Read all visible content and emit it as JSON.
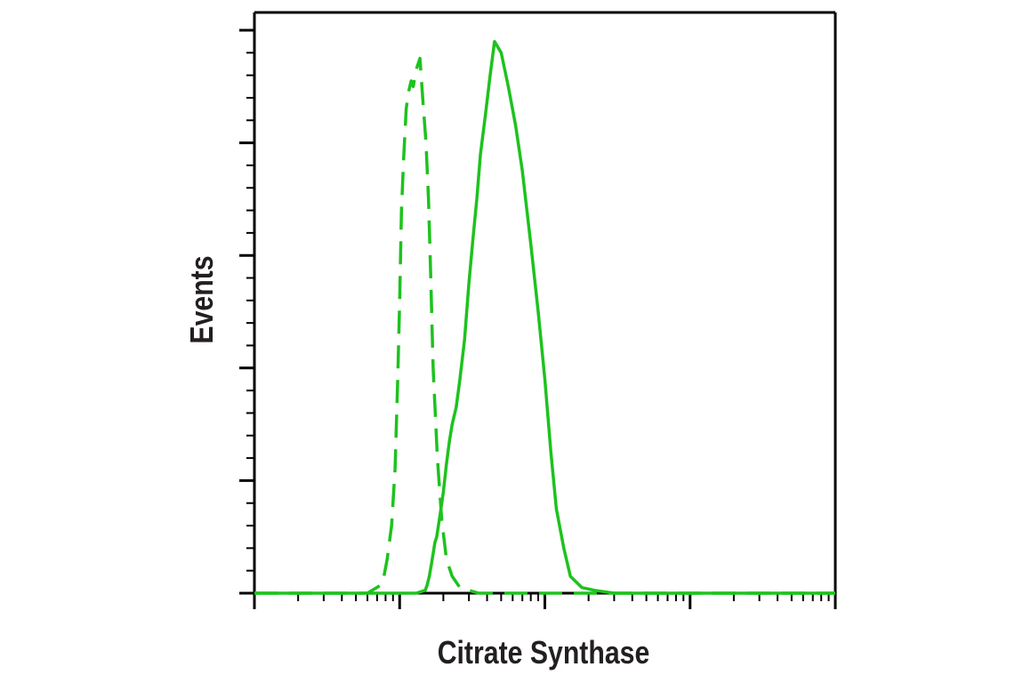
{
  "chart_data": {
    "type": "line",
    "title": "",
    "xlabel": "Citrate Synthase",
    "ylabel": "Events",
    "x_scale": "log",
    "xlim": [
      0.1,
      1000
    ],
    "ylim": [
      0,
      100
    ],
    "x_tick_labels": [],
    "y_tick_labels": [],
    "grid": false,
    "legend": "none",
    "colors": {
      "curve": "#1ec21e",
      "axis": "#000000",
      "text": "#231f20"
    },
    "series": [
      {
        "line_style": "dashed",
        "x": [
          0.1,
          0.2,
          0.4,
          0.6,
          0.75,
          0.78,
          0.82,
          0.88,
          0.93,
          0.97,
          1.0,
          1.03,
          1.07,
          1.11,
          1.15,
          1.2,
          1.24,
          1.3,
          1.38,
          1.45,
          1.52,
          1.58,
          1.63,
          1.7,
          1.82,
          1.95,
          2.1,
          2.3,
          2.6,
          3.0,
          3.5,
          5,
          10,
          100,
          1000
        ],
        "y": [
          0,
          0,
          0,
          0,
          1.5,
          3,
          6,
          12,
          22,
          38,
          52,
          68,
          78,
          86,
          89,
          91,
          90,
          93,
          95,
          87,
          80,
          70,
          58,
          40,
          24,
          13,
          6,
          3,
          1,
          0.5,
          0,
          0,
          0,
          0,
          0
        ]
      },
      {
        "line_style": "solid",
        "x": [
          0.1,
          1.0,
          1.3,
          1.5,
          1.55,
          1.6,
          1.65,
          1.7,
          1.75,
          1.8,
          1.9,
          2.0,
          2.1,
          2.2,
          2.3,
          2.45,
          2.6,
          2.8,
          3.0,
          3.2,
          3.4,
          3.6,
          3.9,
          4.2,
          4.5,
          5.0,
          5.6,
          6.3,
          7.0,
          8.0,
          9.0,
          10,
          11,
          12,
          13.5,
          15,
          18,
          22,
          30,
          100,
          1000
        ],
        "y": [
          0,
          0,
          0,
          0.5,
          1.5,
          3,
          5,
          7,
          9,
          10,
          14,
          18,
          23,
          27,
          30,
          33,
          38,
          45,
          55,
          63,
          70,
          78,
          85,
          92,
          98,
          96,
          90,
          83,
          75,
          62,
          50,
          38,
          25,
          15,
          8,
          3,
          1,
          0.5,
          0,
          0,
          0
        ]
      }
    ]
  }
}
